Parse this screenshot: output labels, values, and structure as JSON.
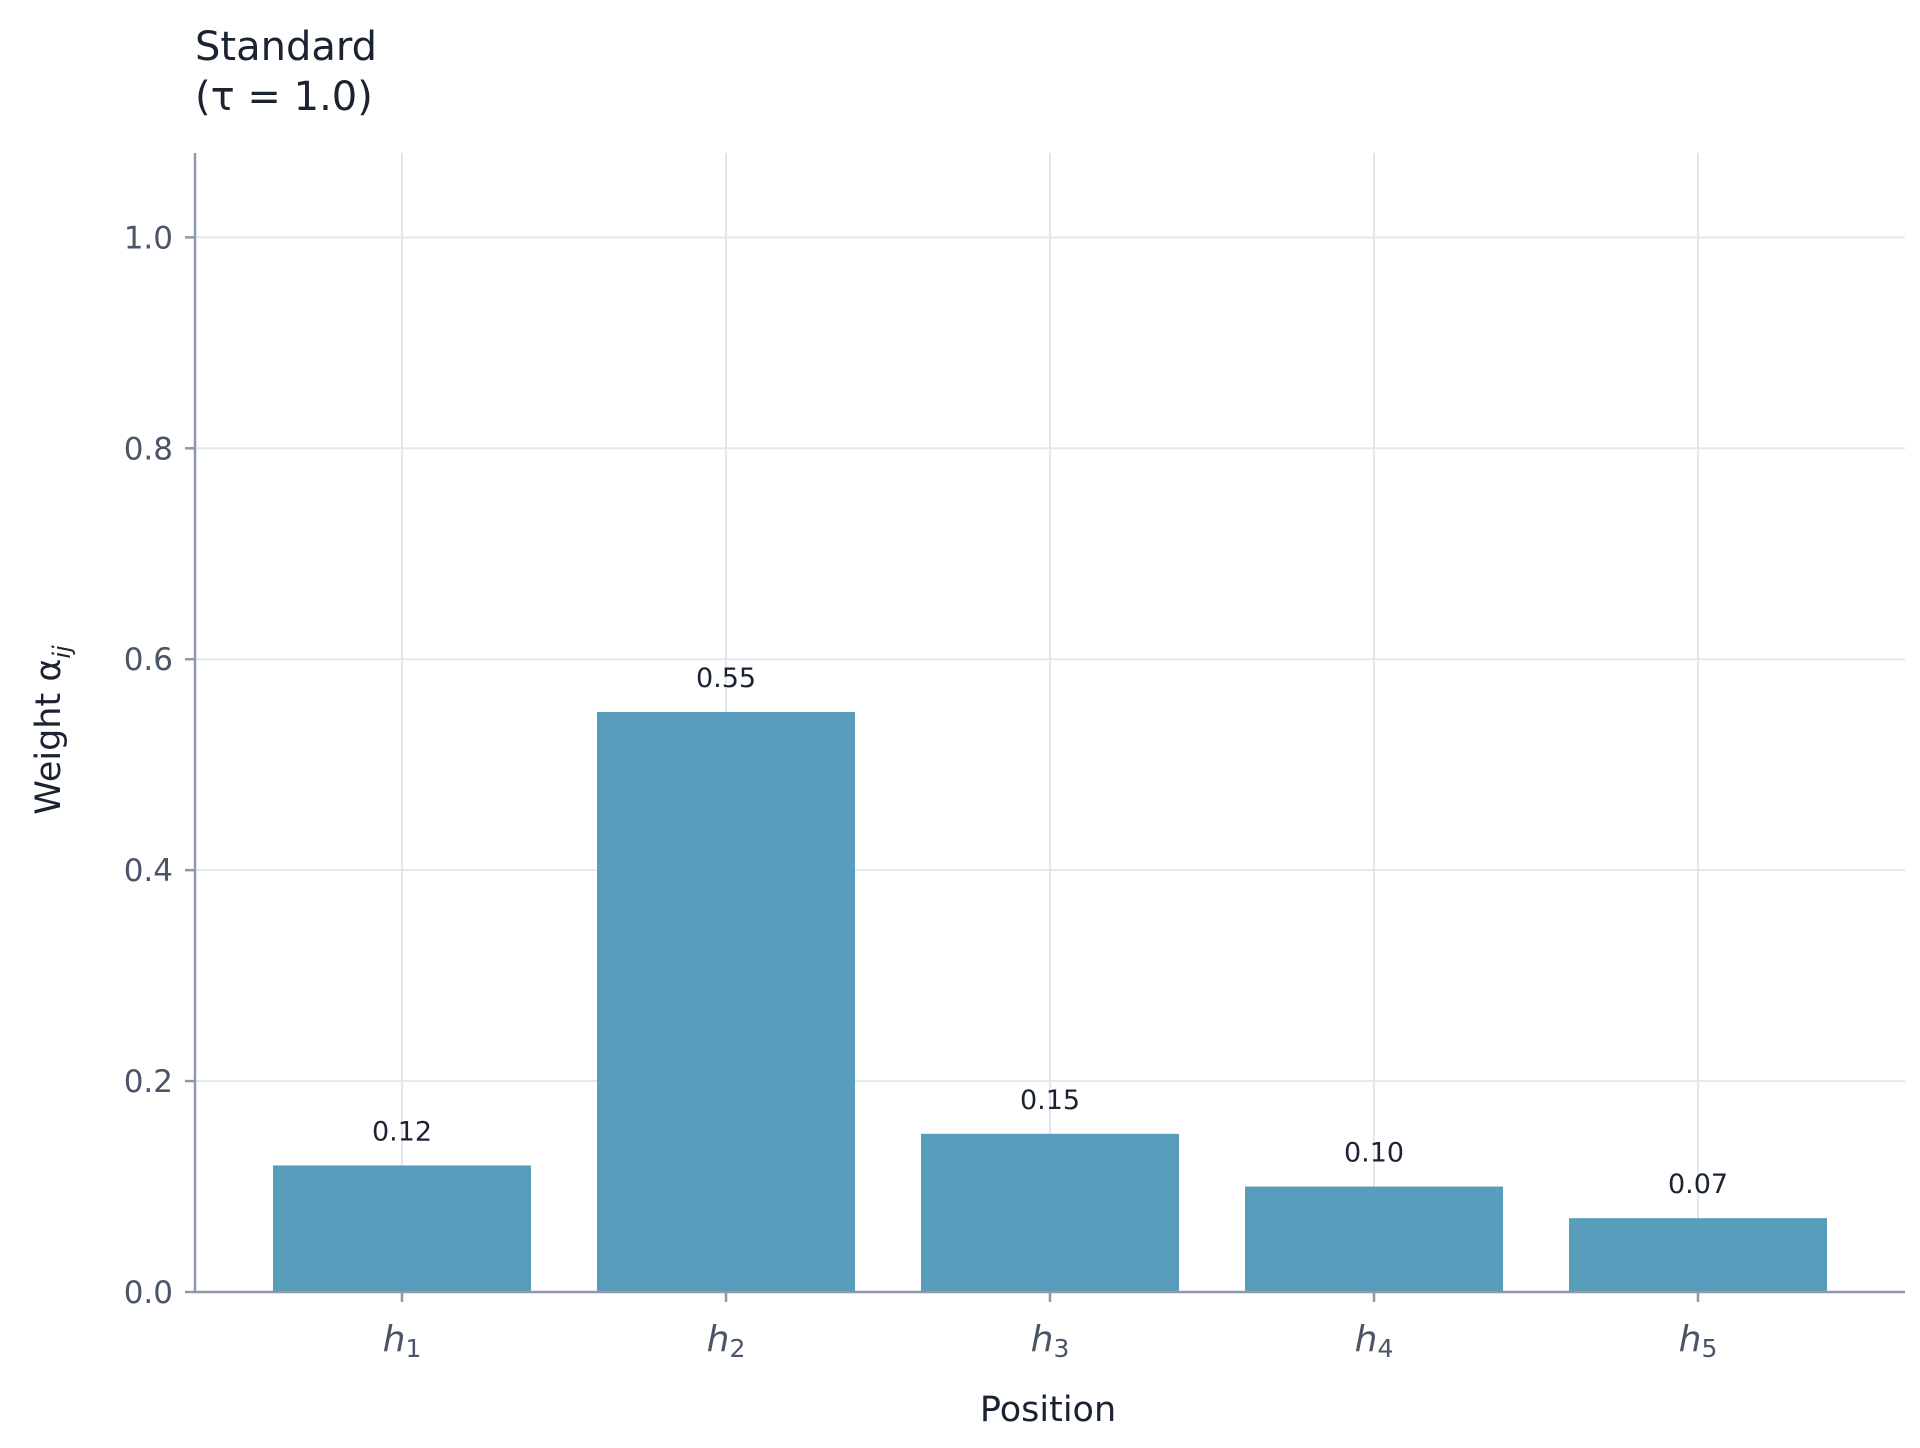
{
  "chart_data": {
    "type": "bar",
    "title_line1": "Standard",
    "title_line2": "(τ = 1.0)",
    "xlabel": "Position",
    "ylabel": "Weight α",
    "ylabel_sub": "ij",
    "categories": [
      {
        "base": "h",
        "sub": "1"
      },
      {
        "base": "h",
        "sub": "2"
      },
      {
        "base": "h",
        "sub": "3"
      },
      {
        "base": "h",
        "sub": "4"
      },
      {
        "base": "h",
        "sub": "5"
      }
    ],
    "values": [
      0.12,
      0.55,
      0.15,
      0.1,
      0.07
    ],
    "value_labels": [
      "0.12",
      "0.55",
      "0.15",
      "0.10",
      "0.07"
    ],
    "yticks": [
      0.0,
      0.2,
      0.4,
      0.6,
      0.8,
      1.0
    ],
    "ytick_labels": [
      "0.0",
      "0.2",
      "0.4",
      "0.6",
      "0.8",
      "1.0"
    ],
    "ylim": [
      0,
      1.08
    ],
    "grid": true,
    "bar_color": "#4b97b7",
    "grid_color": "#e3e8ee",
    "axis_color": "#8d98ab"
  }
}
